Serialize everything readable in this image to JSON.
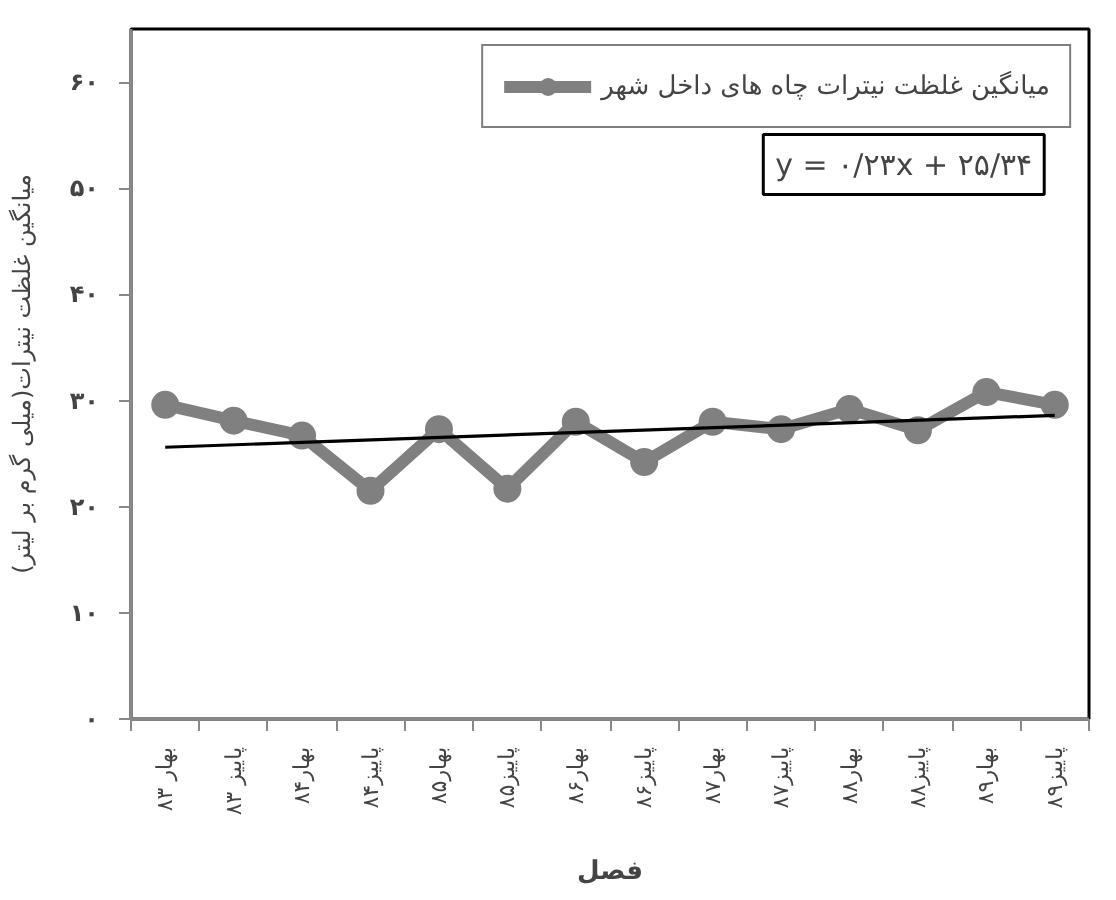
{
  "chart_data": {
    "type": "line",
    "categories": [
      "بهار ۸۳",
      "پاییز ۸۳",
      "بهار۸۴",
      "پاییز۸۴",
      "بهار۸۵",
      "پاییز۸۵",
      "بهار۸۶",
      "پاییز۸۶",
      "بهار۸۷",
      "پاییز۸۷",
      "بهار۸۸",
      "پاییز۸۸",
      "بهار۸۹",
      "پاییز۸۹"
    ],
    "series": [
      {
        "name": "میانگین غلظت نیترات چاه های داخل شهر",
        "color": "#808080",
        "values": [
          29.6,
          28.1,
          26.7,
          21.5,
          27.3,
          21.7,
          28.0,
          24.2,
          28.0,
          27.3,
          29.2,
          27.2,
          30.8,
          29.6
        ]
      },
      {
        "type": "line",
        "color": "#000000",
        "x": [
          "بهار ۸۳",
          "پاییز۸۹"
        ],
        "values": [
          25.6,
          28.6
        ],
        "marker": "none"
      }
    ],
    "xlabel": "فصل",
    "ylabel": "میانگین غلظت نیترات(میلی گرم بر لیتر)",
    "annotations": [
      "y = ۰/۲۳x + ۲۵/۳۴"
    ],
    "ylim": [
      0,
      65
    ],
    "yticks": [
      {
        "value": 0,
        "label": "۰"
      },
      {
        "value": 10,
        "label": "۱۰"
      },
      {
        "value": 20,
        "label": "۲۰"
      },
      {
        "value": 30,
        "label": "۳۰"
      },
      {
        "value": 40,
        "label": "۴۰"
      },
      {
        "value": 50,
        "label": "۵۰"
      },
      {
        "value": 60,
        "label": "۶۰"
      }
    ],
    "legend": "top right",
    "marker": "circle"
  }
}
